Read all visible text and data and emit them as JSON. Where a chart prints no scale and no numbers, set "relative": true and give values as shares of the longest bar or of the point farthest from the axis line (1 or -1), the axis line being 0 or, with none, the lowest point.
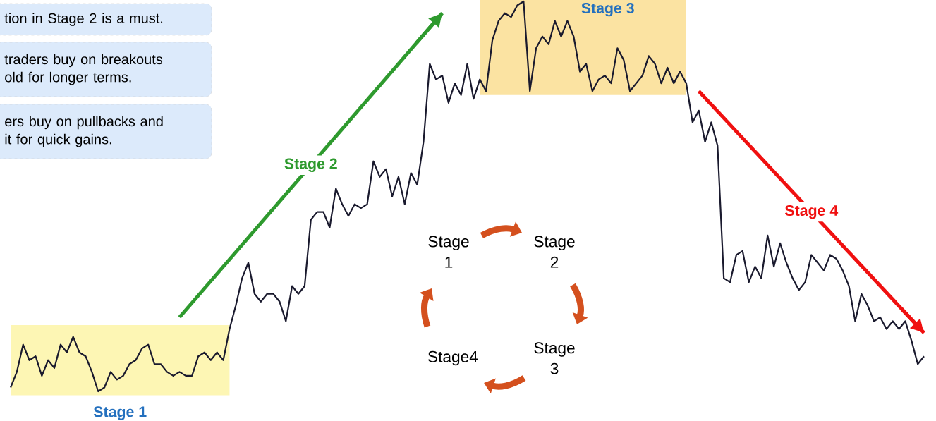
{
  "chart_data": {
    "type": "line",
    "relative": true,
    "marker": "none",
    "categories": [
      null,
      null,
      null,
      null,
      null,
      null,
      null,
      null,
      null,
      null,
      null,
      null,
      null,
      null,
      null,
      null,
      null,
      null,
      null,
      null,
      null,
      null,
      null,
      null,
      null,
      null,
      null,
      null,
      null,
      null,
      null,
      null,
      null,
      null,
      null,
      null,
      null,
      null,
      null,
      null,
      null,
      null,
      null,
      null,
      null,
      null,
      null,
      null,
      null,
      null,
      null,
      null,
      null,
      null,
      null,
      null,
      null,
      null,
      null,
      null,
      null,
      null,
      null,
      null,
      null,
      null,
      null,
      null,
      null,
      null,
      null,
      null,
      null,
      null,
      null,
      null,
      null,
      null,
      null,
      null,
      null,
      null,
      null,
      null,
      null,
      null,
      null,
      null,
      null,
      null,
      null,
      null,
      null,
      null,
      null,
      null,
      null,
      null,
      null,
      null,
      null,
      null,
      null,
      null,
      null,
      null,
      null,
      null,
      null,
      null,
      null,
      null,
      null,
      null,
      null,
      null,
      null,
      null,
      null,
      null,
      null,
      null,
      null,
      null,
      null,
      null,
      null,
      null,
      null,
      null,
      null,
      null,
      null,
      null,
      null,
      null,
      null,
      null,
      null,
      null,
      null,
      null,
      null,
      null,
      null,
      null,
      null
    ],
    "series": [
      {
        "color": "#1a1a2e",
        "values": [
          0.01,
          0.05,
          0.12,
          0.08,
          0.09,
          0.04,
          0.08,
          0.06,
          0.12,
          0.1,
          0.14,
          0.1,
          0.09,
          0.05,
          0.0,
          0.01,
          0.05,
          0.03,
          0.04,
          0.07,
          0.08,
          0.11,
          0.12,
          0.07,
          0.07,
          0.05,
          0.04,
          0.05,
          0.04,
          0.04,
          0.09,
          0.1,
          0.08,
          0.1,
          0.08,
          0.16,
          0.22,
          0.29,
          0.33,
          0.25,
          0.23,
          0.25,
          0.25,
          0.23,
          0.18,
          0.27,
          0.25,
          0.27,
          0.44,
          0.46,
          0.46,
          0.42,
          0.52,
          0.48,
          0.45,
          0.48,
          0.47,
          0.48,
          0.59,
          0.55,
          0.57,
          0.5,
          0.55,
          0.48,
          0.56,
          0.53,
          0.64,
          0.84,
          0.8,
          0.81,
          0.74,
          0.79,
          0.76,
          0.84,
          0.75,
          0.8,
          0.77,
          0.9,
          0.95,
          0.97,
          0.96,
          0.99,
          1.0,
          0.77,
          0.88,
          0.91,
          0.89,
          0.95,
          0.91,
          0.95,
          0.91,
          0.82,
          0.84,
          0.77,
          0.8,
          0.81,
          0.79,
          0.88,
          0.85,
          0.77,
          0.79,
          0.81,
          0.86,
          0.84,
          0.79,
          0.83,
          0.79,
          0.82,
          0.79,
          0.69,
          0.72,
          0.64,
          0.69,
          0.63,
          0.29,
          0.28,
          0.35,
          0.36,
          0.28,
          0.32,
          0.29,
          0.4,
          0.32,
          0.38,
          0.33,
          0.29,
          0.26,
          0.28,
          0.35,
          0.33,
          0.31,
          0.35,
          0.34,
          0.31,
          0.27,
          0.18,
          0.25,
          0.22,
          0.18,
          0.19,
          0.16,
          0.18,
          0.16,
          0.18,
          0.13,
          0.07,
          0.09
        ]
      },
      {
        "type": "line",
        "name": "Stage 2",
        "color": "#2e9a2e",
        "values": [
          null,
          null,
          null,
          null,
          null,
          null,
          null,
          null,
          null,
          null,
          null,
          null,
          null,
          null,
          null,
          null,
          null,
          null,
          null,
          null,
          null,
          null,
          null,
          null,
          null,
          null,
          null,
          0.19,
          null,
          null,
          null,
          null,
          null,
          null,
          null,
          null,
          null,
          null,
          null,
          null,
          null,
          null,
          null,
          null,
          null,
          null,
          null,
          null,
          null,
          null,
          null,
          null,
          null,
          null,
          null,
          null,
          null,
          null,
          null,
          null,
          null,
          null,
          null,
          null,
          null,
          null,
          null,
          null,
          null,
          0.97,
          null,
          null,
          null,
          null,
          null,
          null,
          null,
          null,
          null,
          null,
          null,
          null,
          null,
          null,
          null,
          null,
          null,
          null,
          null,
          null,
          null,
          null,
          null,
          null,
          null,
          null,
          null,
          null,
          null,
          null,
          null,
          null,
          null,
          null,
          null,
          null,
          null,
          null,
          null,
          null,
          null,
          null,
          null,
          null,
          null,
          null,
          null,
          null,
          null,
          null,
          null,
          null,
          null,
          null,
          null,
          null,
          null,
          null,
          null,
          null,
          null,
          null,
          null,
          null,
          null,
          null,
          null,
          null,
          null,
          null,
          null,
          null,
          null,
          null,
          null,
          null,
          null
        ]
      },
      {
        "type": "line",
        "name": "Stage 4",
        "color": "#f01010",
        "values": [
          null,
          null,
          null,
          null,
          null,
          null,
          null,
          null,
          null,
          null,
          null,
          null,
          null,
          null,
          null,
          null,
          null,
          null,
          null,
          null,
          null,
          null,
          null,
          null,
          null,
          null,
          null,
          null,
          null,
          null,
          null,
          null,
          null,
          null,
          null,
          null,
          null,
          null,
          null,
          null,
          null,
          null,
          null,
          null,
          null,
          null,
          null,
          null,
          null,
          null,
          null,
          null,
          null,
          null,
          null,
          null,
          null,
          null,
          null,
          null,
          null,
          null,
          null,
          null,
          null,
          null,
          null,
          null,
          null,
          null,
          null,
          null,
          null,
          null,
          null,
          null,
          null,
          null,
          null,
          null,
          null,
          null,
          null,
          null,
          null,
          null,
          null,
          null,
          null,
          null,
          null,
          null,
          null,
          null,
          null,
          null,
          null,
          null,
          null,
          null,
          null,
          null,
          null,
          null,
          null,
          null,
          null,
          null,
          null,
          null,
          0.77,
          null,
          null,
          null,
          null,
          null,
          null,
          null,
          null,
          null,
          null,
          null,
          null,
          null,
          null,
          null,
          null,
          null,
          null,
          null,
          null,
          null,
          null,
          null,
          null,
          null,
          null,
          null,
          null,
          null,
          null,
          null,
          null,
          null,
          null,
          null,
          0.15
        ]
      }
    ],
    "annotations": [
      "tion in Stage 2 is a must.",
      "traders buy on breakouts old for longer terms.",
      "ers buy on pullbacks and it for quick gains.",
      "Stage 1",
      "Stage 3",
      "Stage 1",
      "Stage 2",
      "Stage 3",
      "Stage4"
    ]
  }
}
